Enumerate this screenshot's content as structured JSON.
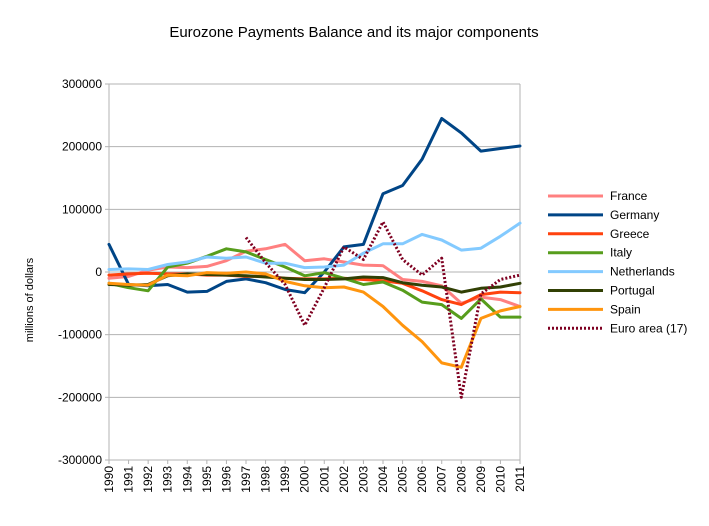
{
  "chart_data": {
    "type": "line",
    "title": "Eurozone Payments Balance and its major components",
    "xlabel": "",
    "ylabel": "millions of dollars",
    "ylim": [
      -300000,
      300000
    ],
    "yticks": [
      300000,
      200000,
      100000,
      0,
      -100000,
      -200000,
      -300000
    ],
    "ytick_labels": [
      "300000",
      "200000",
      "100000",
      "0",
      "-100000",
      "-200000",
      "-300000"
    ],
    "x": [
      "1990",
      "1991",
      "1992",
      "1993",
      "1994",
      "1995",
      "1996",
      "1997",
      "1998",
      "1999",
      "2000",
      "2001",
      "2002",
      "2003",
      "2004",
      "2005",
      "2006",
      "2007",
      "2008",
      "2009",
      "2010",
      "2011"
    ],
    "grid": "horizontal",
    "legend_position": "right",
    "series": [
      {
        "name": "France",
        "color": "#ff8080",
        "style": "solid",
        "values": [
          -10000,
          -7000,
          3000,
          8000,
          7000,
          9000,
          18000,
          33000,
          37000,
          44000,
          18000,
          21000,
          16000,
          11000,
          10000,
          -12000,
          -15000,
          -22000,
          -50000,
          -40000,
          -44000,
          -55000
        ]
      },
      {
        "name": "Germany",
        "color": "#004586",
        "style": "solid",
        "values": [
          44000,
          -20000,
          -22000,
          -20000,
          -32000,
          -31000,
          -15000,
          -11000,
          -17000,
          -28000,
          -33000,
          0,
          40000,
          44000,
          125000,
          138000,
          180000,
          245000,
          222000,
          193000,
          197000,
          201000
        ]
      },
      {
        "name": "Greece",
        "color": "#ff420e",
        "style": "solid",
        "values": [
          -5000,
          -3000,
          -2000,
          -3000,
          -3000,
          -5000,
          -5000,
          -7000,
          -7000,
          -10000,
          -11000,
          -11000,
          -10000,
          -12000,
          -14000,
          -18000,
          -30000,
          -44000,
          -52000,
          -36000,
          -32000,
          -33000
        ]
      },
      {
        "name": "Italy",
        "color": "#579d1c",
        "style": "solid",
        "values": [
          -18000,
          -25000,
          -30000,
          8000,
          14000,
          25000,
          37000,
          32000,
          20000,
          8000,
          -6000,
          -1000,
          -10000,
          -20000,
          -16000,
          -29000,
          -48000,
          -52000,
          -74000,
          -43000,
          -72000,
          -72000
        ]
      },
      {
        "name": "Netherlands",
        "color": "#83caff",
        "style": "solid",
        "values": [
          4000,
          5000,
          4000,
          12000,
          16000,
          24000,
          22000,
          24000,
          14000,
          14000,
          7000,
          8000,
          11000,
          30000,
          45000,
          45000,
          60000,
          51000,
          35000,
          38000,
          57000,
          78000
        ]
      },
      {
        "name": "Portugal",
        "color": "#314004",
        "style": "solid",
        "values": [
          -20000,
          -21000,
          -20000,
          -6000,
          -3000,
          -4000,
          -5000,
          -6000,
          -8000,
          -10000,
          -12000,
          -12000,
          -11000,
          -8000,
          -9000,
          -17000,
          -21000,
          -24000,
          -32000,
          -26000,
          -24000,
          -18000
        ]
      },
      {
        "name": "Spain",
        "color": "#ff950e",
        "style": "solid",
        "values": [
          -18000,
          -20000,
          -21000,
          -5000,
          -6000,
          -1000,
          -2000,
          0,
          -3000,
          -15000,
          -22000,
          -25000,
          -24000,
          -32000,
          -55000,
          -85000,
          -111000,
          -145000,
          -152000,
          -74000,
          -62000,
          -55000
        ]
      },
      {
        "name": "Euro area (17)",
        "color": "#7e0021",
        "style": "dotted",
        "values": [
          null,
          null,
          null,
          null,
          null,
          null,
          null,
          55000,
          15000,
          -20000,
          -85000,
          -25000,
          40000,
          20000,
          80000,
          20000,
          -5000,
          22000,
          -200000,
          -35000,
          -12000,
          -5000
        ]
      }
    ]
  }
}
